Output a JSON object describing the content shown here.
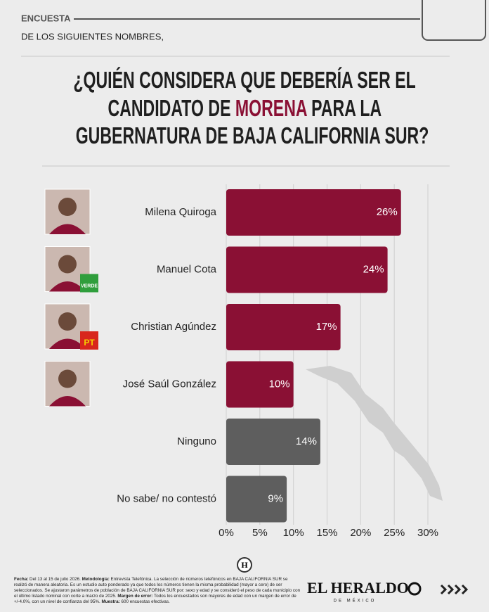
{
  "header": {
    "section": "ENCUESTA",
    "subtitle": "DE LOS SIGUIENTES NOMBRES,"
  },
  "chart_data": {
    "type": "barh",
    "title": {
      "line1": "¿QUIÉN CONSIDERA QUE DEBERÍA SER EL",
      "line2": [
        "CANDIDATO DE ",
        "MORENA",
        " PARA LA"
      ],
      "line3": "GUBERNATURA DE BAJA CALIFORNIA SUR?"
    },
    "categories": [
      "Milena Quiroga",
      "Manuel Cota",
      "Christian Agúndez",
      "José Saúl González",
      "Ninguno",
      "No sabe/ no contestó"
    ],
    "values": [
      26,
      24,
      17,
      10,
      14,
      9
    ],
    "value_labels": [
      "26%",
      "24%",
      "17%",
      "10%",
      "14%",
      "9%"
    ],
    "colors": [
      "#8a1034",
      "#8a1034",
      "#8a1034",
      "#8a1034",
      "#5e5e5e",
      "#5e5e5e"
    ],
    "badges": [
      null,
      "VERDE",
      "PT",
      null,
      null,
      null
    ],
    "xlim": [
      0,
      30
    ],
    "xticks": [
      {
        "value": 0,
        "label": "0%"
      },
      {
        "value": 5,
        "label": "5%"
      },
      {
        "value": 10,
        "label": "10%"
      },
      {
        "value": 15,
        "label": "15%"
      },
      {
        "value": 20,
        "label": "20%"
      },
      {
        "value": 25,
        "label": "25%"
      },
      {
        "value": 30,
        "label": "30%"
      }
    ],
    "grid": true
  },
  "footer": {
    "notes": [
      "Fecha:",
      " Del 13 al 15 de julio 2026. ",
      "Metodología:",
      " Entrevista Telefónica. La selección de números telefónicos en BAJA CALIFORNIA SUR se realizó de manera aleatoria. Es un estudio auto ponderado ya que todos los números tienen la misma probabilidad (mayor a cero) de ser seleccionados. Se ajustaron parámetros de población de BAJA CALIFORNIA SUR por: sexo y edad y se consideró el peso de cada municipio con el último listado nominal con corte a marzo de 2025. ",
      "Margen de error:",
      " Todos los encuestados son mayores de edad con un margen de error de +/-4.0%, con un nivel de confianza del 95%. ",
      "Muestra:",
      " 600 encuestas efectivas."
    ],
    "logo": "EL HERALDO",
    "logo_sub": "DE MÉXICO",
    "badge": "H"
  }
}
